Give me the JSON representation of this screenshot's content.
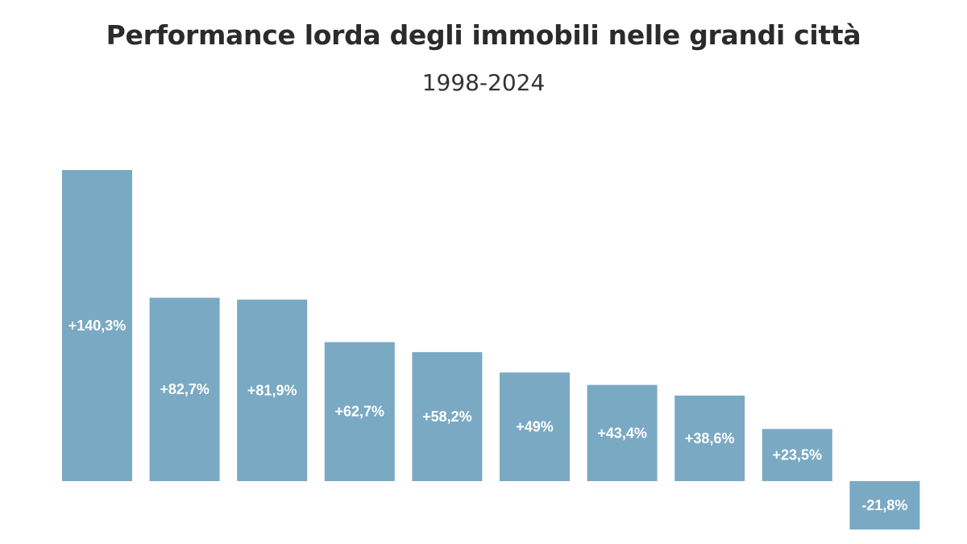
{
  "chart_data": {
    "type": "bar",
    "title": "Performance lorda degli immobili nelle grandi città",
    "subtitle": "1998-2024",
    "xlabel": "",
    "ylabel": "",
    "ylim": [
      -21.8,
      140.3
    ],
    "grid": false,
    "legend": "none",
    "bar_color": "#7aa9c4",
    "values": [
      140.3,
      82.7,
      81.9,
      62.7,
      58.2,
      49,
      43.4,
      38.6,
      23.5,
      -21.8
    ],
    "data_labels": [
      "+140,3%",
      "+82,7%",
      "+81,9%",
      "+62,7%",
      "+58,2%",
      "+49%",
      "+43,4%",
      "+38,6%",
      "+23,5%",
      "-21,8%"
    ]
  }
}
